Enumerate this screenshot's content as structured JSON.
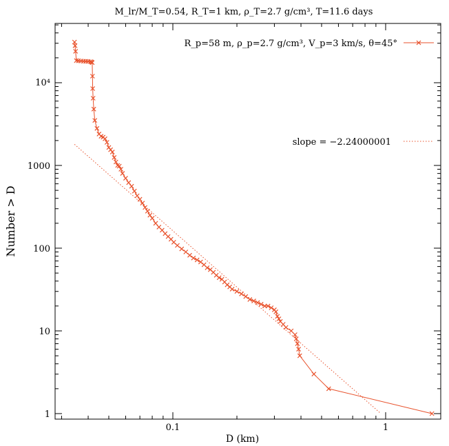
{
  "chart_data": {
    "type": "scatter",
    "title": "M_lr/M_T=0.54, R_T=1 km, ρ_T=2.7 g/cm³, T=11.6  days",
    "xlabel": "D (km)",
    "ylabel": "Number > D",
    "xscale": "log",
    "yscale": "log",
    "xlim": [
      0.0308,
      1.78
    ],
    "ylim": [
      0.95,
      50000
    ],
    "x_tick_labels": [
      "0.1",
      "1"
    ],
    "y_tick_labels": [
      "1",
      "10",
      "100",
      "1000",
      "10⁴"
    ],
    "legend_placement": "top-right",
    "series": [
      {
        "name": "R_p=58 m, ρ_p=2.7 g/cm³, V_p=3 km/s, θ=45°",
        "color": "#e8512b",
        "style": "line+x-markers",
        "x": [
          0.0345,
          0.0347,
          0.0349,
          0.0352,
          0.036,
          0.037,
          0.038,
          0.039,
          0.04,
          0.041,
          0.0415,
          0.0418,
          0.0419,
          0.042,
          0.0422,
          0.0425,
          0.043,
          0.044,
          0.045,
          0.046,
          0.047,
          0.048,
          0.049,
          0.05,
          0.051,
          0.052,
          0.053,
          0.054,
          0.055,
          0.056,
          0.057,
          0.058,
          0.06,
          0.062,
          0.064,
          0.066,
          0.068,
          0.07,
          0.072,
          0.074,
          0.076,
          0.078,
          0.08,
          0.083,
          0.086,
          0.089,
          0.092,
          0.095,
          0.098,
          0.101,
          0.105,
          0.11,
          0.115,
          0.12,
          0.125,
          0.13,
          0.135,
          0.14,
          0.145,
          0.15,
          0.155,
          0.16,
          0.165,
          0.17,
          0.175,
          0.18,
          0.185,
          0.19,
          0.2,
          0.21,
          0.22,
          0.23,
          0.24,
          0.25,
          0.26,
          0.27,
          0.28,
          0.29,
          0.3,
          0.305,
          0.31,
          0.315,
          0.32,
          0.33,
          0.34,
          0.36,
          0.375,
          0.38,
          0.385,
          0.39,
          0.395,
          0.46,
          0.54,
          1.65
        ],
        "y": [
          31000,
          28000,
          24000,
          18500,
          18400,
          18300,
          18200,
          18150,
          18100,
          18000,
          17800,
          17500,
          12000,
          8500,
          6500,
          4800,
          3500,
          2800,
          2400,
          2250,
          2200,
          2100,
          1900,
          1650,
          1550,
          1450,
          1250,
          1100,
          1000,
          980,
          900,
          800,
          700,
          620,
          560,
          490,
          430,
          390,
          350,
          310,
          280,
          250,
          230,
          200,
          180,
          165,
          150,
          138,
          128,
          118,
          108,
          98,
          90,
          82,
          76,
          72,
          68,
          63,
          58,
          55,
          51,
          47,
          44,
          42,
          39,
          36,
          34,
          32,
          30,
          28,
          26,
          24,
          23,
          22,
          21,
          20,
          20,
          19,
          18,
          17,
          15,
          14,
          13,
          12,
          11,
          10,
          9,
          8,
          7,
          6,
          5,
          3,
          2,
          1
        ]
      },
      {
        "name": "slope = −2.24000001",
        "color": "#e8512b",
        "style": "dotted-line",
        "x": [
          0.0345,
          0.95
        ],
        "y": [
          1800,
          1
        ]
      }
    ]
  }
}
